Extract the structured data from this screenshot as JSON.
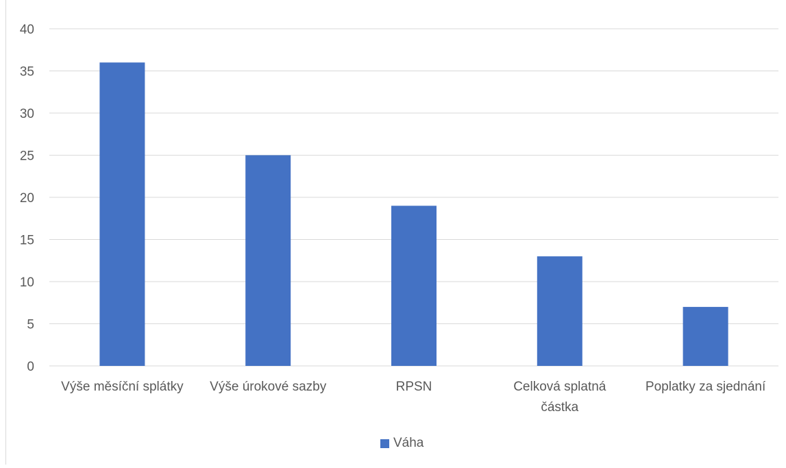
{
  "chart_data": {
    "type": "bar",
    "categories": [
      "Výše měsíční splátky",
      "Výše úrokové sazby",
      "RPSN",
      "Celková splatná částka",
      "Poplatky za sjednání"
    ],
    "category_label_lines": [
      [
        "Výše měsíční splátky"
      ],
      [
        "Výše úrokové sazby"
      ],
      [
        "RPSN"
      ],
      [
        "Celková splatná",
        "částka"
      ],
      [
        "Poplatky za sjednání"
      ]
    ],
    "series": [
      {
        "name": "Váha",
        "values": [
          36,
          25,
          19,
          13,
          7
        ],
        "color": "#4472c4"
      }
    ],
    "ylim": [
      0,
      40
    ],
    "yticks": [
      0,
      5,
      10,
      15,
      20,
      25,
      30,
      35,
      40
    ],
    "grid": true,
    "legend_position": "bottom"
  }
}
